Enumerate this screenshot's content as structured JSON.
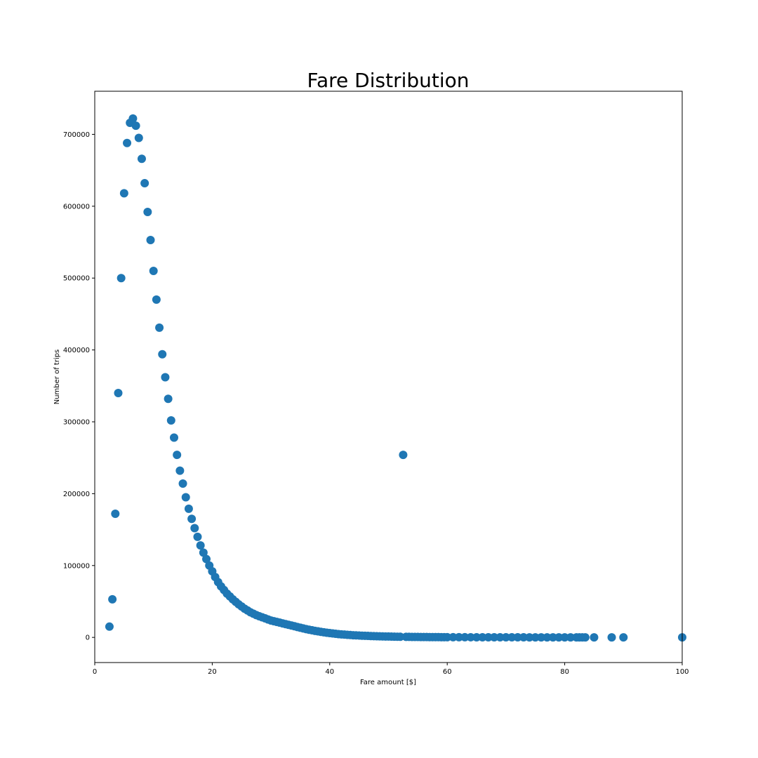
{
  "chart_data": {
    "type": "scatter",
    "title": "Fare Distribution",
    "xlabel": "Fare amount [$]",
    "ylabel": "Number of trips",
    "xlim": [
      0,
      100
    ],
    "ylim": [
      -35000,
      760000
    ],
    "xticks": [
      "0",
      "20",
      "40",
      "60",
      "80",
      "100"
    ],
    "yticks": [
      "0",
      "100000",
      "200000",
      "300000",
      "400000",
      "500000",
      "600000",
      "700000"
    ],
    "grid": false,
    "legend": "none",
    "marker_color": "#1f77b4",
    "series": [
      {
        "x": [
          2.5,
          3,
          3.5,
          4,
          4.5,
          5,
          5.5,
          6,
          6.5,
          7,
          7.5,
          8,
          8.5,
          9,
          9.5,
          10,
          10.5,
          11,
          11.5,
          12,
          12.5,
          13,
          13.5,
          14,
          14.5,
          15,
          15.5,
          16,
          16.5,
          17,
          17.5,
          18,
          18.5,
          19,
          19.5,
          20,
          20.5,
          21,
          21.5,
          22,
          22.5,
          23,
          23.5,
          24,
          24.5,
          25,
          25.5,
          26,
          26.5,
          27,
          27.5,
          28,
          28.5,
          29,
          29.5,
          30,
          30.5,
          31,
          31.5,
          32,
          32.5,
          33,
          33.5,
          34,
          34.5,
          35,
          35.5,
          36,
          36.5,
          37,
          37.5,
          38,
          38.5,
          39,
          39.5,
          40,
          40.5,
          41,
          41.5,
          42,
          42.5,
          43,
          43.5,
          44,
          44.5,
          45,
          45.5,
          46,
          46.5,
          47,
          47.5,
          48,
          48.5,
          49,
          49.5,
          50,
          50.5,
          51,
          51.5,
          52,
          52.5,
          53,
          53.5,
          54,
          54.5,
          55,
          55.5,
          56,
          56.5,
          57,
          57.5,
          58,
          58.5,
          59,
          59.5,
          60,
          61,
          62,
          63,
          64,
          65,
          66,
          67,
          68,
          69,
          70,
          71,
          72,
          73,
          74,
          75,
          76,
          77,
          78,
          79,
          80,
          81,
          82,
          82.5,
          83,
          83.5,
          85,
          88,
          90,
          100
        ],
        "y": [
          15000,
          53000,
          172000,
          340000,
          500000,
          618000,
          688000,
          716000,
          722000,
          712000,
          695000,
          666000,
          632000,
          592000,
          553000,
          510000,
          470000,
          431000,
          394000,
          362000,
          332000,
          302000,
          278000,
          254000,
          232000,
          214000,
          195000,
          179000,
          165000,
          152000,
          140000,
          128000,
          118000,
          109000,
          100000,
          92000,
          84000,
          77000,
          71000,
          66000,
          61000,
          57000,
          53000,
          49500,
          46000,
          43000,
          40000,
          37500,
          35000,
          33000,
          31000,
          29500,
          28000,
          26500,
          25000,
          23500,
          22500,
          21500,
          20500,
          19500,
          18500,
          17500,
          16500,
          15500,
          14500,
          13500,
          12500,
          11500,
          10700,
          9900,
          9100,
          8400,
          7700,
          7100,
          6500,
          6000,
          5500,
          5000,
          4600,
          4200,
          3900,
          3600,
          3300,
          3000,
          2800,
          2600,
          2400,
          2200,
          2050,
          1900,
          1750,
          1600,
          1500,
          1400,
          1300,
          1200,
          1100,
          1000,
          950,
          900,
          254000,
          800,
          750,
          700,
          650,
          600,
          560,
          520,
          480,
          450,
          420,
          390,
          360,
          340,
          320,
          300,
          280,
          260,
          240,
          220,
          200,
          185,
          170,
          155,
          140,
          130,
          120,
          110,
          100,
          90,
          80,
          72,
          65,
          58,
          52,
          46,
          40,
          35,
          30,
          28,
          26,
          22,
          18,
          15,
          10
        ]
      }
    ]
  }
}
